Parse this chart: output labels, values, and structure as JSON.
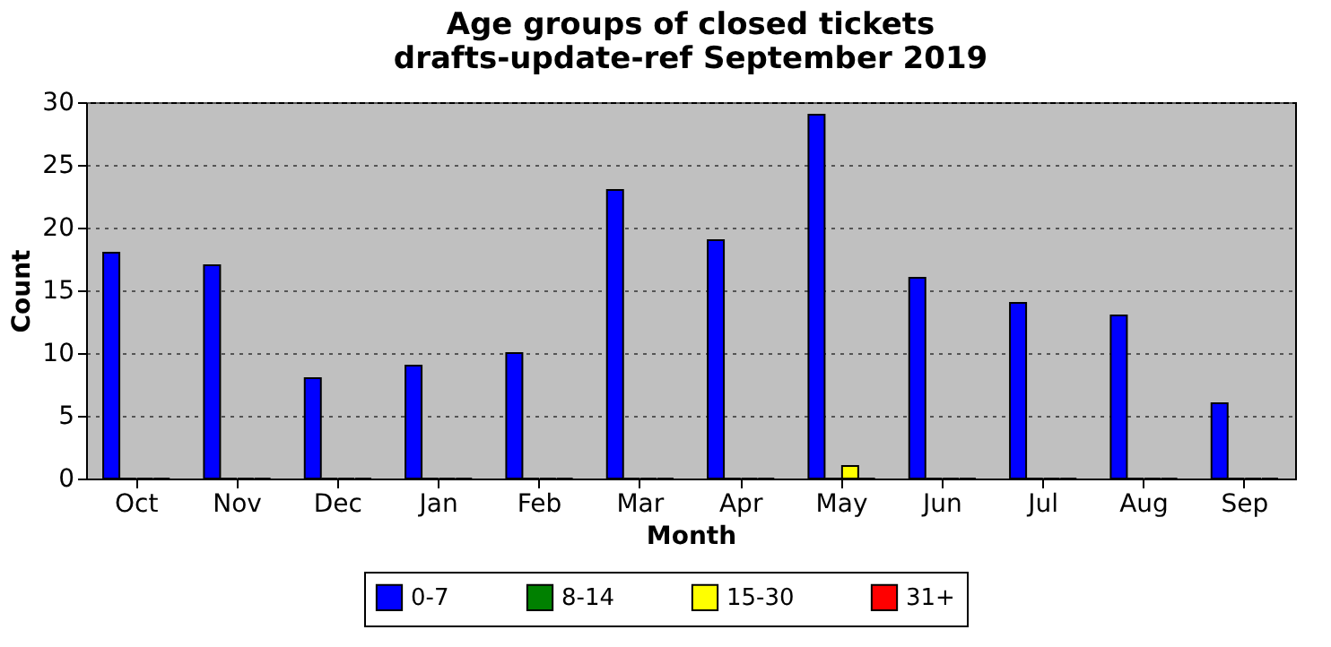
{
  "chart_data": {
    "type": "bar",
    "title": "Age groups of closed tickets\ndrafts-update-ref September 2019",
    "xlabel": "Month",
    "ylabel": "Count",
    "categories": [
      "Oct",
      "Nov",
      "Dec",
      "Jan",
      "Feb",
      "Mar",
      "Apr",
      "May",
      "Jun",
      "Jul",
      "Aug",
      "Sep"
    ],
    "series": [
      {
        "name": "0-7",
        "color": "#0000ff",
        "values": [
          18,
          17,
          8,
          9,
          10,
          23,
          19,
          29,
          16,
          14,
          13,
          6
        ]
      },
      {
        "name": "8-14",
        "color": "#008000",
        "values": [
          0,
          0,
          0,
          0,
          0,
          0,
          0,
          0,
          0,
          0,
          0,
          0
        ]
      },
      {
        "name": "15-30",
        "color": "#ffff00",
        "values": [
          0,
          0,
          0,
          0,
          0,
          0,
          0,
          1,
          0,
          0,
          0,
          0
        ]
      },
      {
        "name": "31+",
        "color": "#ff0000",
        "values": [
          0,
          0,
          0,
          0,
          0,
          0,
          0,
          0,
          0,
          0,
          0,
          0
        ]
      }
    ],
    "ylim": [
      0,
      30
    ],
    "yticks": [
      0,
      5,
      10,
      15,
      20,
      25,
      30
    ],
    "grid": "y",
    "legend": "bottom"
  }
}
